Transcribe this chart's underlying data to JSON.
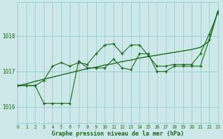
{
  "hours": [
    0,
    1,
    2,
    3,
    4,
    5,
    6,
    7,
    8,
    9,
    10,
    11,
    12,
    13,
    14,
    15,
    16,
    17,
    18,
    19,
    20,
    21,
    22,
    23
  ],
  "line_volatile": [
    1016.6,
    1016.6,
    1016.6,
    1016.75,
    1017.15,
    1017.25,
    1017.15,
    1017.25,
    1017.2,
    1017.5,
    1017.75,
    1017.78,
    1017.5,
    1017.75,
    1017.75,
    1017.45,
    1017.15,
    1017.15,
    1017.2,
    1017.2,
    1017.2,
    1017.5,
    1018.05,
    1018.65
  ],
  "line_dip": [
    1016.6,
    1016.6,
    1016.6,
    1016.1,
    1016.1,
    1016.1,
    1016.1,
    1017.3,
    1017.1,
    1017.1,
    1017.1,
    1017.35,
    1017.1,
    1017.05,
    1017.5,
    1017.5,
    1017.0,
    1017.0,
    1017.15,
    1017.15,
    1017.15,
    1017.15,
    1017.9,
    1018.7
  ],
  "line_trend": [
    1016.6,
    1016.65,
    1016.72,
    1016.78,
    1016.84,
    1016.9,
    1016.96,
    1017.02,
    1017.08,
    1017.12,
    1017.18,
    1017.22,
    1017.28,
    1017.32,
    1017.38,
    1017.42,
    1017.46,
    1017.5,
    1017.54,
    1017.58,
    1017.62,
    1017.68,
    1017.85,
    1018.7
  ],
  "bg_color": "#cce8e8",
  "grid_color": "#99cccc",
  "line_color": "#1a6b1a",
  "xlabel": "Graphe pression niveau de la mer (hPa)",
  "xlim": [
    0,
    23
  ],
  "ylim": [
    1015.55,
    1018.95
  ],
  "yticks": [
    1016,
    1017,
    1018
  ],
  "xticks": [
    0,
    1,
    2,
    3,
    4,
    5,
    6,
    7,
    8,
    9,
    10,
    11,
    12,
    13,
    14,
    15,
    16,
    17,
    18,
    19,
    20,
    21,
    22,
    23
  ]
}
